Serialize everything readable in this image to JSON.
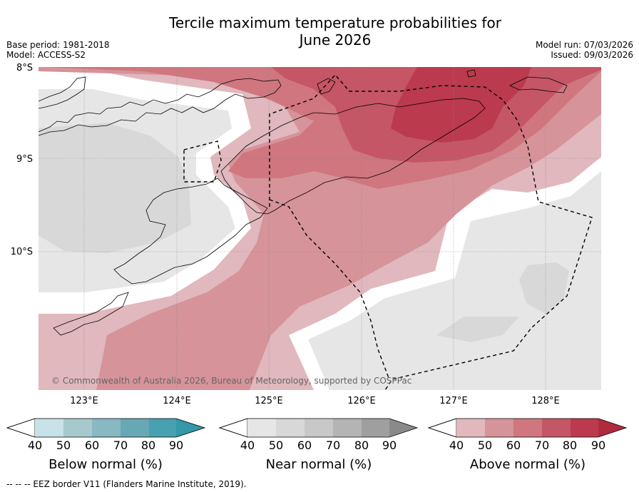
{
  "title": {
    "line1": "Tercile maximum temperature probabilities for",
    "line2": "June 2026"
  },
  "meta": {
    "base_period": "Base period: 1981-2018",
    "model": "Model: ACCESS-S2",
    "model_run": "Model run: 07/03/2026",
    "issued": "Issued: 09/03/2026"
  },
  "axes": {
    "lat_labels": [
      "8°S",
      "9°S",
      "10°S"
    ],
    "lon_labels": [
      "123°E",
      "124°E",
      "125°E",
      "126°E",
      "127°E",
      "128°E"
    ]
  },
  "copyright": "© Commonwealth of Australia 2026, Bureau of Meteorology, supported by COSPPac",
  "colorbars": [
    {
      "title": "Below normal (%)",
      "ticks": [
        "40",
        "50",
        "60",
        "70",
        "80",
        "90"
      ],
      "colors": [
        "#c7e2e8",
        "#a7c9ce",
        "#88b8c2",
        "#67a8b5",
        "#47a1b1",
        "#3398a8"
      ]
    },
    {
      "title": "Near normal (%)",
      "ticks": [
        "40",
        "50",
        "60",
        "70",
        "80",
        "90"
      ],
      "colors": [
        "#e6e6e6",
        "#d8d8d8",
        "#c8c8c8",
        "#b4b4b4",
        "#9f9f9f",
        "#8a8a8a"
      ]
    },
    {
      "title": "Above normal (%)",
      "ticks": [
        "40",
        "50",
        "60",
        "70",
        "80",
        "90"
      ],
      "colors": [
        "#e0b8bd",
        "#d6939a",
        "#cf767e",
        "#c55665",
        "#bb3a4d",
        "#b22a3e"
      ]
    }
  ],
  "footnote": "-- -- -- EEZ border V11 (Flanders Marine Institute, 2019).",
  "colors": {
    "above_40": "#e0b8bd",
    "above_50": "#d6939a",
    "above_60": "#cf767e",
    "above_70": "#c55665",
    "near_40": "#e6e6e6",
    "near_50": "#d8d8d8"
  }
}
